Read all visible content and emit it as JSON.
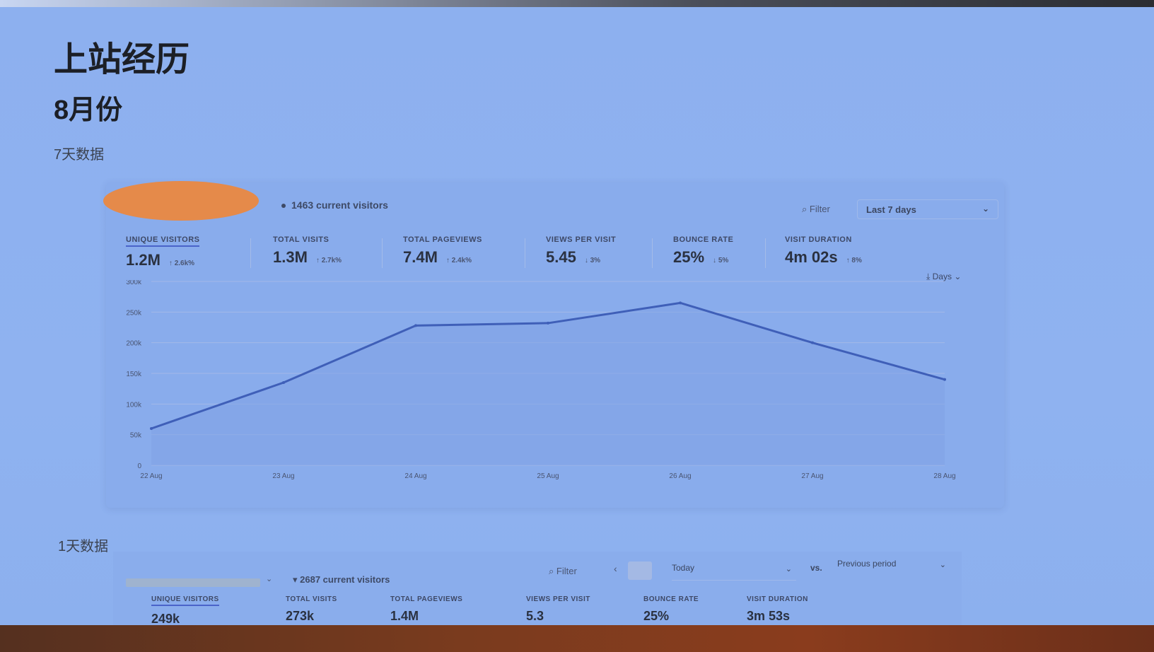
{
  "page": {
    "title": "上站经历",
    "subtitle": "8月份",
    "section1": "7天数据",
    "section2": "1天数据"
  },
  "dashboard7": {
    "live_visitors": "1463 current visitors",
    "filter_label": "Filter",
    "range_label": "Last 7 days",
    "interval_label": "Days",
    "stats": [
      {
        "label": "UNIQUE VISITORS",
        "value": "1.2M",
        "change": "↑ 2.6k%"
      },
      {
        "label": "TOTAL VISITS",
        "value": "1.3M",
        "change": "↑ 2.7k%"
      },
      {
        "label": "TOTAL PAGEVIEWS",
        "value": "7.4M",
        "change": "↑ 2.4k%"
      },
      {
        "label": "VIEWS PER VISIT",
        "value": "5.45",
        "change": "↓ 3%"
      },
      {
        "label": "BOUNCE RATE",
        "value": "25%",
        "change": "↓ 5%"
      },
      {
        "label": "VISIT DURATION",
        "value": "4m 02s",
        "change": "↑ 8%"
      }
    ]
  },
  "dashboard1": {
    "live_visitors": "2687 current visitors",
    "filter_label": "Filter",
    "range_label": "Today",
    "vs_label": "vs.",
    "compare_label": "Previous period",
    "stats": [
      {
        "label": "UNIQUE VISITORS",
        "value": "249k"
      },
      {
        "label": "TOTAL VISITS",
        "value": "273k"
      },
      {
        "label": "TOTAL PAGEVIEWS",
        "value": "1.4M"
      },
      {
        "label": "VIEWS PER VISIT",
        "value": "5.3"
      },
      {
        "label": "BOUNCE RATE",
        "value": "25%"
      },
      {
        "label": "VISIT DURATION",
        "value": "3m 53s"
      }
    ]
  },
  "chart_data": {
    "type": "area",
    "categories": [
      "22 Aug",
      "23 Aug",
      "24 Aug",
      "25 Aug",
      "26 Aug",
      "27 Aug",
      "28 Aug"
    ],
    "series": [
      {
        "values": [
          60000,
          135000,
          228000,
          232000,
          265000,
          200000,
          140000
        ]
      }
    ],
    "y_ticks": [
      "0",
      "50k",
      "100k",
      "150k",
      "200k",
      "250k",
      "300k"
    ],
    "ylim": [
      0,
      300000
    ],
    "grid": true,
    "line_color": "#3f5fb8",
    "fill_color": "#7fa2e6"
  }
}
